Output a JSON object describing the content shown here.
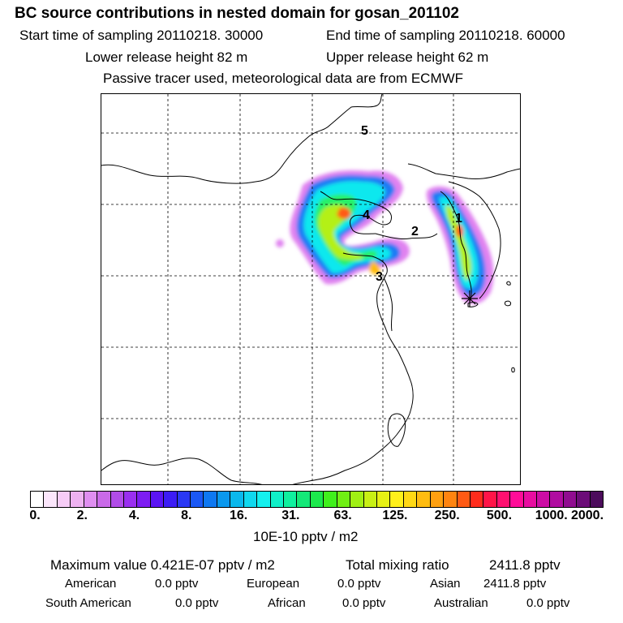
{
  "header": {
    "title": "BC  source contributions in nested domain for gosan_201102",
    "start_time": "Start time of sampling 20110218. 30000",
    "end_time": "End time of sampling 20110218. 60000",
    "lower_height": "Lower release height   82 m",
    "upper_height": "Upper release height   62 m",
    "tracer_note": "Passive tracer used, meteorological data are from ECMWF"
  },
  "map": {
    "source_labels": [
      "5",
      "4",
      "2",
      "1",
      "3"
    ],
    "receptor_marker": "gosan-receptor"
  },
  "colorbar": {
    "ticks": [
      "0.",
      "2.",
      "4.",
      "8.",
      "16.",
      "31.",
      "63.",
      "125.",
      "250.",
      "500.",
      "1000.",
      "2000."
    ],
    "colors": [
      "#ffffff",
      "#fbe6fb",
      "#f6ccf6",
      "#eeb2f1",
      "#df8ef0",
      "#c96ae8",
      "#b14ce8",
      "#9a2ef0",
      "#7d1cf2",
      "#5b14f4",
      "#3c1cf4",
      "#2a38f4",
      "#1a58f5",
      "#0e78f2",
      "#0a98ee",
      "#0ab8ec",
      "#10d8ee",
      "#14f0ee",
      "#10f0c8",
      "#10f09e",
      "#14e878",
      "#1ce84c",
      "#40f01c",
      "#70f014",
      "#a0f014",
      "#c8f014",
      "#e6f014",
      "#fff01a",
      "#ffd814",
      "#ffbc10",
      "#ffa010",
      "#ff8410",
      "#ff5a14",
      "#ff2c1c",
      "#ff1448",
      "#ff1070",
      "#ff0c98",
      "#e80ca0",
      "#cc0ca4",
      "#b00ca0",
      "#900c90",
      "#6c0c78",
      "#4c0c5c"
    ],
    "units": "10E-10 pptv / m2"
  },
  "stats": {
    "max_label": "Maximum value  0.421E-07 pptv / m2",
    "total_label": "Total mixing ratio",
    "total_value": "2411.8 pptv",
    "american_label": "American",
    "american_value": "0.0 pptv",
    "european_label": "European",
    "european_value": "0.0 pptv",
    "asian_label": "Asian",
    "asian_value": "2411.8 pptv",
    "south_american_label": "South American",
    "south_american_value": "0.0 pptv",
    "african_label": "African",
    "african_value": "0.0 pptv",
    "australian_label": "Australian",
    "australian_value": "0.0 pptv"
  }
}
